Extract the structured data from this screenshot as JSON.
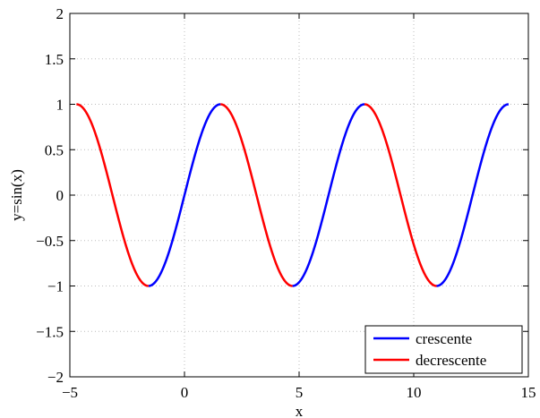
{
  "chart_data": {
    "type": "line",
    "title": "",
    "xlabel": "x",
    "ylabel": "y=sin(x)",
    "xlim": [
      -5,
      15
    ],
    "ylim": [
      -2,
      2
    ],
    "xticks": [
      -5,
      0,
      5,
      10,
      15
    ],
    "yticks": [
      -2,
      -1.5,
      -1,
      -0.5,
      0,
      0.5,
      1,
      1.5,
      2
    ],
    "xtick_labels": [
      "−5",
      "0",
      "5",
      "10",
      "15"
    ],
    "ytick_labels": [
      "−2",
      "−1.5",
      "−1",
      "−0.5",
      "0",
      "0.5",
      "1",
      "1.5",
      "2"
    ],
    "grid": true,
    "function": "sin(x)",
    "domain": [
      -4.712,
      14.137
    ],
    "series": [
      {
        "name": "crescente",
        "color": "#0000ff",
        "intervals": [
          [
            -1.5708,
            1.5708
          ],
          [
            4.7124,
            7.854
          ],
          [
            10.9956,
            14.1372
          ]
        ]
      },
      {
        "name": "decrescente",
        "color": "#ff0000",
        "intervals": [
          [
            -4.7124,
            -1.5708
          ],
          [
            1.5708,
            4.7124
          ],
          [
            7.854,
            10.9956
          ]
        ]
      }
    ],
    "legend": {
      "placement": "bottom-right",
      "entries": [
        "crescente",
        "decrescente"
      ]
    }
  }
}
